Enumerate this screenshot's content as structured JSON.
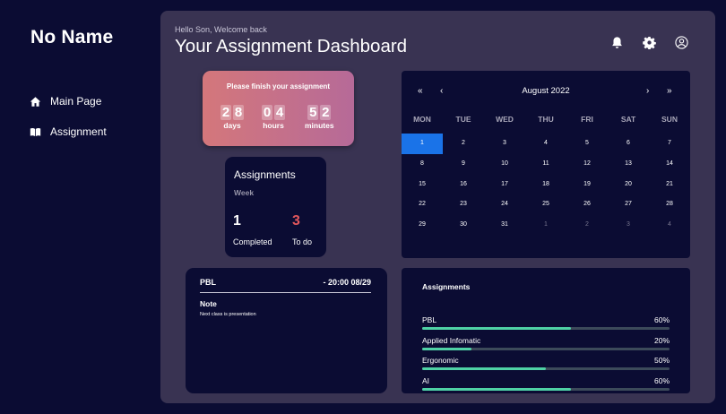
{
  "sidebar": {
    "brand": "No Name",
    "items": [
      {
        "label": "Main Page",
        "icon": "home-icon"
      },
      {
        "label": "Assignment",
        "icon": "book-icon"
      }
    ]
  },
  "header": {
    "greeting": "Hello Son, Welcome back",
    "title": "Your Assignment Dashboard",
    "icons": [
      "bell-icon",
      "gear-icon",
      "user-icon"
    ]
  },
  "timer": {
    "message": "Please finish your assignment",
    "days": "28",
    "hours": "04",
    "minutes": "52",
    "days_label": "days",
    "hours_label": "hours",
    "minutes_label": "minutes"
  },
  "weekly": {
    "title": "Assignments",
    "period": "Week",
    "completed": "1",
    "completed_label": "Completed",
    "todo": "3",
    "todo_label": "To do",
    "todo_color": "#e2575c"
  },
  "calendar": {
    "month": "August 2022",
    "nav": [
      "«",
      "‹",
      "›",
      "»"
    ],
    "weekdays": [
      "MON",
      "TUE",
      "WED",
      "THU",
      "FRI",
      "SAT",
      "SUN"
    ],
    "days": [
      {
        "d": "1",
        "sel": true
      },
      {
        "d": "2"
      },
      {
        "d": "3"
      },
      {
        "d": "4"
      },
      {
        "d": "5"
      },
      {
        "d": "6"
      },
      {
        "d": "7"
      },
      {
        "d": "8"
      },
      {
        "d": "9"
      },
      {
        "d": "10"
      },
      {
        "d": "11"
      },
      {
        "d": "12"
      },
      {
        "d": "13"
      },
      {
        "d": "14"
      },
      {
        "d": "15"
      },
      {
        "d": "16"
      },
      {
        "d": "17"
      },
      {
        "d": "18"
      },
      {
        "d": "19"
      },
      {
        "d": "20"
      },
      {
        "d": "21"
      },
      {
        "d": "22"
      },
      {
        "d": "23"
      },
      {
        "d": "24"
      },
      {
        "d": "25"
      },
      {
        "d": "26"
      },
      {
        "d": "27"
      },
      {
        "d": "28"
      },
      {
        "d": "29"
      },
      {
        "d": "30"
      },
      {
        "d": "31"
      },
      {
        "d": "1",
        "muted": true
      },
      {
        "d": "2",
        "muted": true
      },
      {
        "d": "3",
        "muted": true
      },
      {
        "d": "4",
        "muted": true
      }
    ],
    "selected_color": "#1a73e8"
  },
  "note": {
    "course": "PBL",
    "deadline": "- 20:00 08/29",
    "label": "Note",
    "text": "Next class is presentation"
  },
  "progress": {
    "title": "Assignments",
    "bar_color": "#4fd1a5",
    "items": [
      {
        "name": "PBL",
        "value": 60,
        "label": "60%"
      },
      {
        "name": "Applied Infomatic",
        "value": 20,
        "label": "20%"
      },
      {
        "name": "Ergonomic",
        "value": 50,
        "label": "50%"
      },
      {
        "name": "AI",
        "value": 60,
        "label": "60%"
      }
    ]
  }
}
